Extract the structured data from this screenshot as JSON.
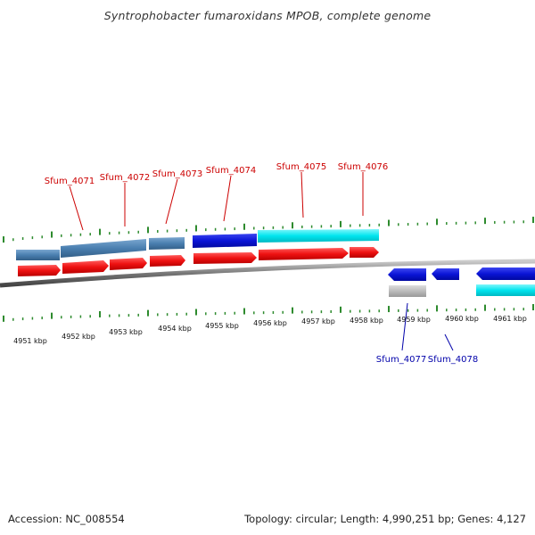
{
  "title": "Syntrophobacter fumaroxidans MPOB, complete genome",
  "footer": {
    "accession": "Accession: NC_008554",
    "topology": "Topology: circular; Length: 4,990,251 bp; Genes: 4,127"
  },
  "colors": {
    "label_top": "#cc0000",
    "label_bottom": "#0000aa",
    "tick": "#2e8b2e",
    "backbone": "#777777",
    "cds": "#ee1111",
    "gene_steel": "#4a7fb0",
    "gene_blue": "#0a14d6",
    "gene_cyan": "#00e5ee",
    "gene_gray": "#bbbbbb"
  },
  "kbp_labels": [
    "4951 kbp",
    "4952 kbp",
    "4953 kbp",
    "4954 kbp",
    "4955 kbp",
    "4956 kbp",
    "4957 kbp",
    "4958 kbp",
    "4959 kbp",
    "4960 kbp",
    "4961 kbp"
  ],
  "top_gene_labels": [
    "Sfum_4071",
    "Sfum_4072",
    "Sfum_4073",
    "Sfum_4074",
    "Sfum_4075",
    "Sfum_4076"
  ],
  "bottom_gene_labels": [
    "Sfum_4077",
    "Sfum_4078"
  ]
}
